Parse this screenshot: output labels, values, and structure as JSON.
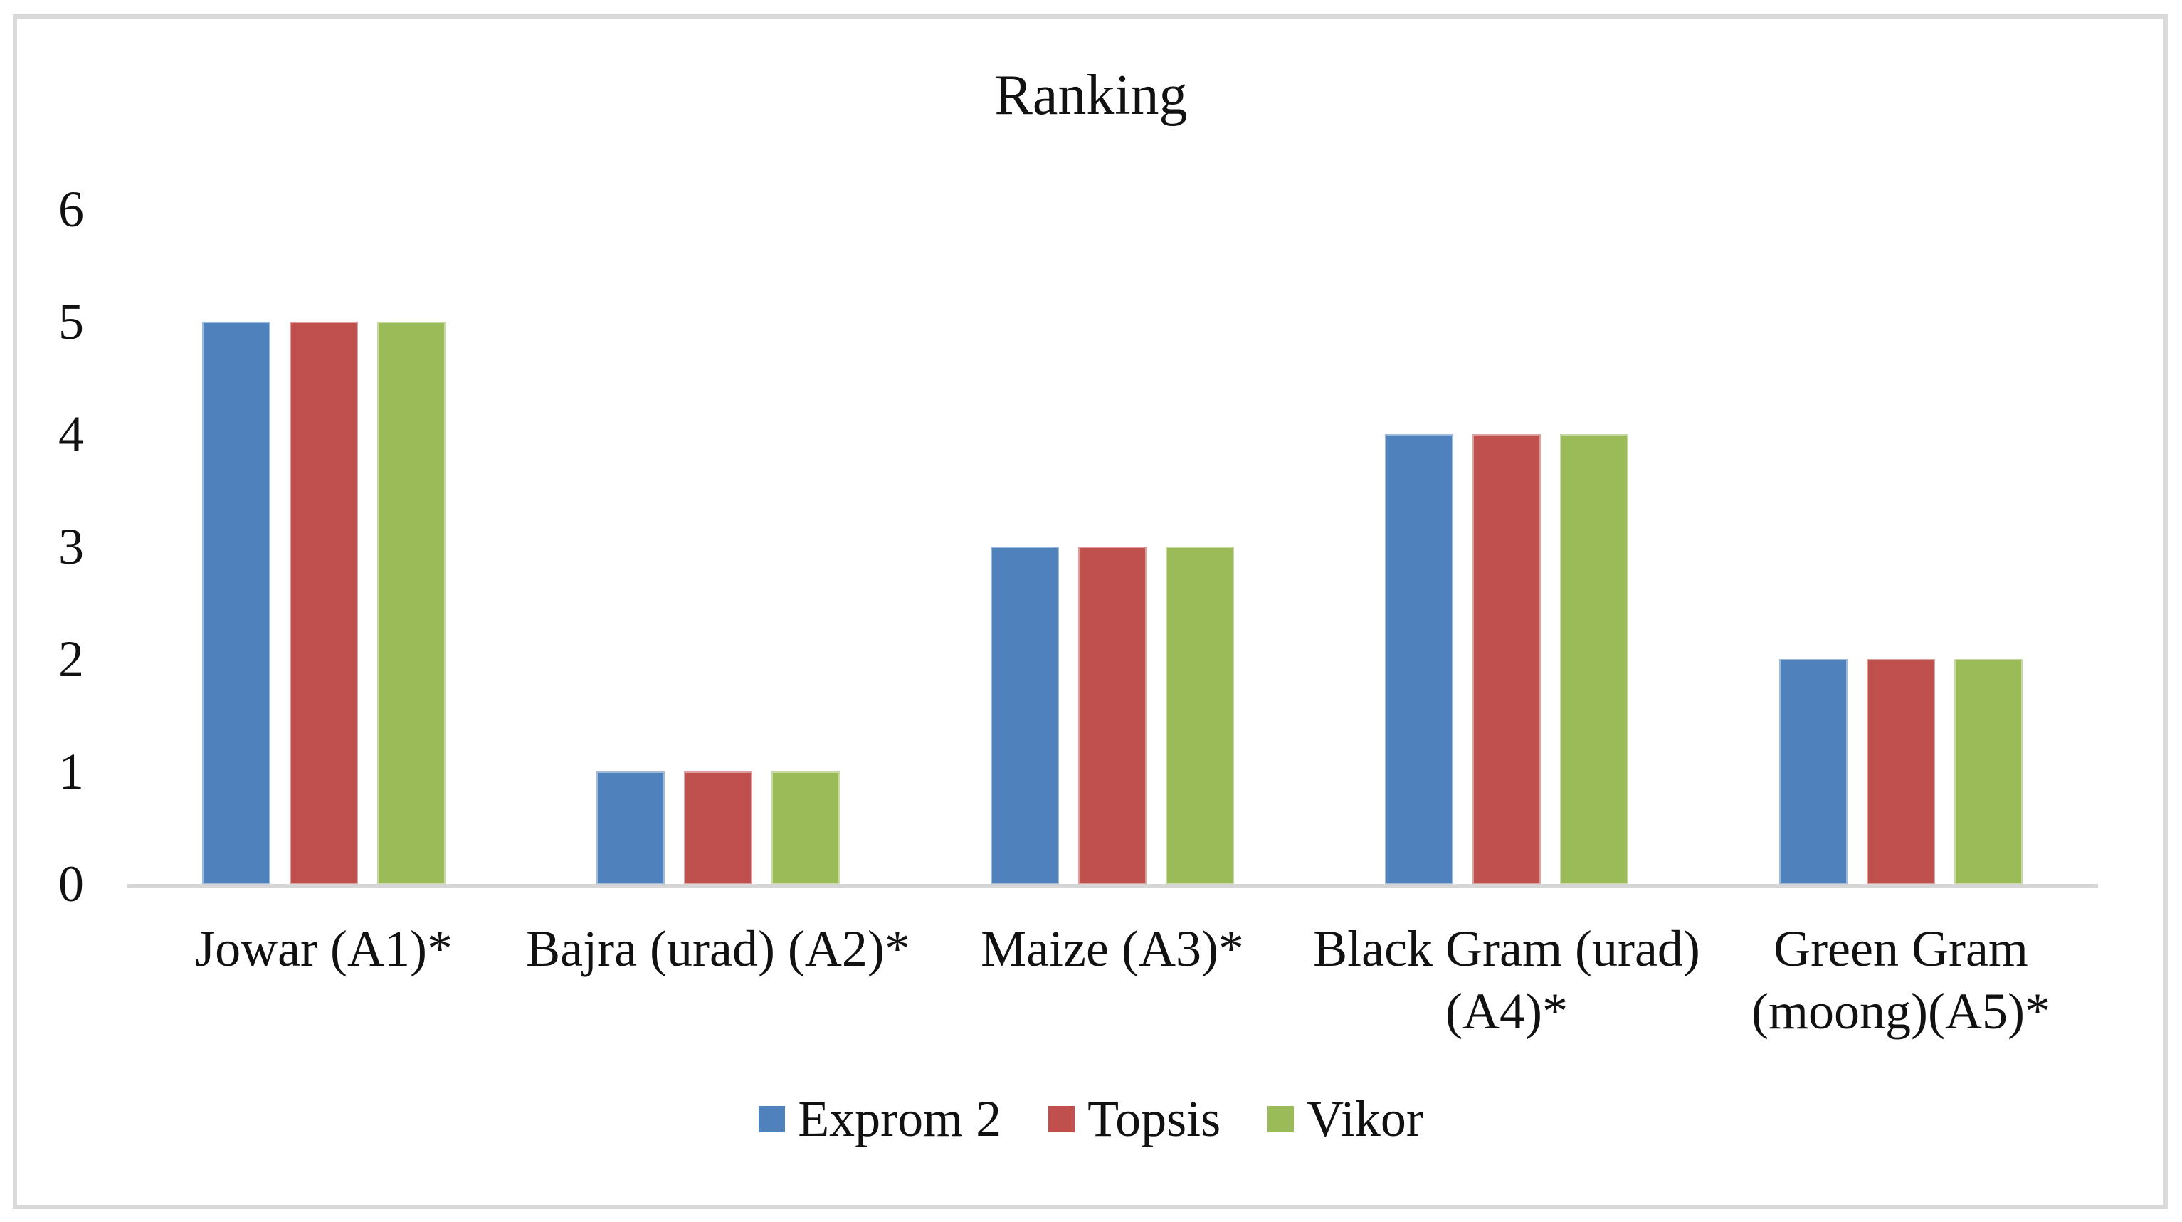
{
  "chart_data": {
    "type": "bar",
    "title": "Ranking",
    "categories": [
      "Jowar (A1)*",
      "Bajra (urad) (A2)*",
      "Maize (A3)*",
      "Black Gram (urad) (A4)*",
      "Green Gram (moong)(A5)*"
    ],
    "series": [
      {
        "name": "Exprom 2",
        "color": "#4F81BD",
        "values": [
          5,
          1,
          3,
          4,
          2
        ]
      },
      {
        "name": "Topsis",
        "color": "#C0504D",
        "values": [
          5,
          1,
          3,
          4,
          2
        ]
      },
      {
        "name": "Vikor",
        "color": "#9BBB59",
        "values": [
          5,
          1,
          3,
          4,
          2
        ]
      }
    ],
    "xlabel": "",
    "ylabel": "",
    "ylim": [
      0,
      6
    ],
    "yticks": [
      0,
      1,
      2,
      3,
      4,
      5,
      6
    ],
    "grid": false,
    "legend_position": "bottom",
    "axis_line_color": "#D6D6D6",
    "frame_border_color": "#D9D9D9"
  }
}
